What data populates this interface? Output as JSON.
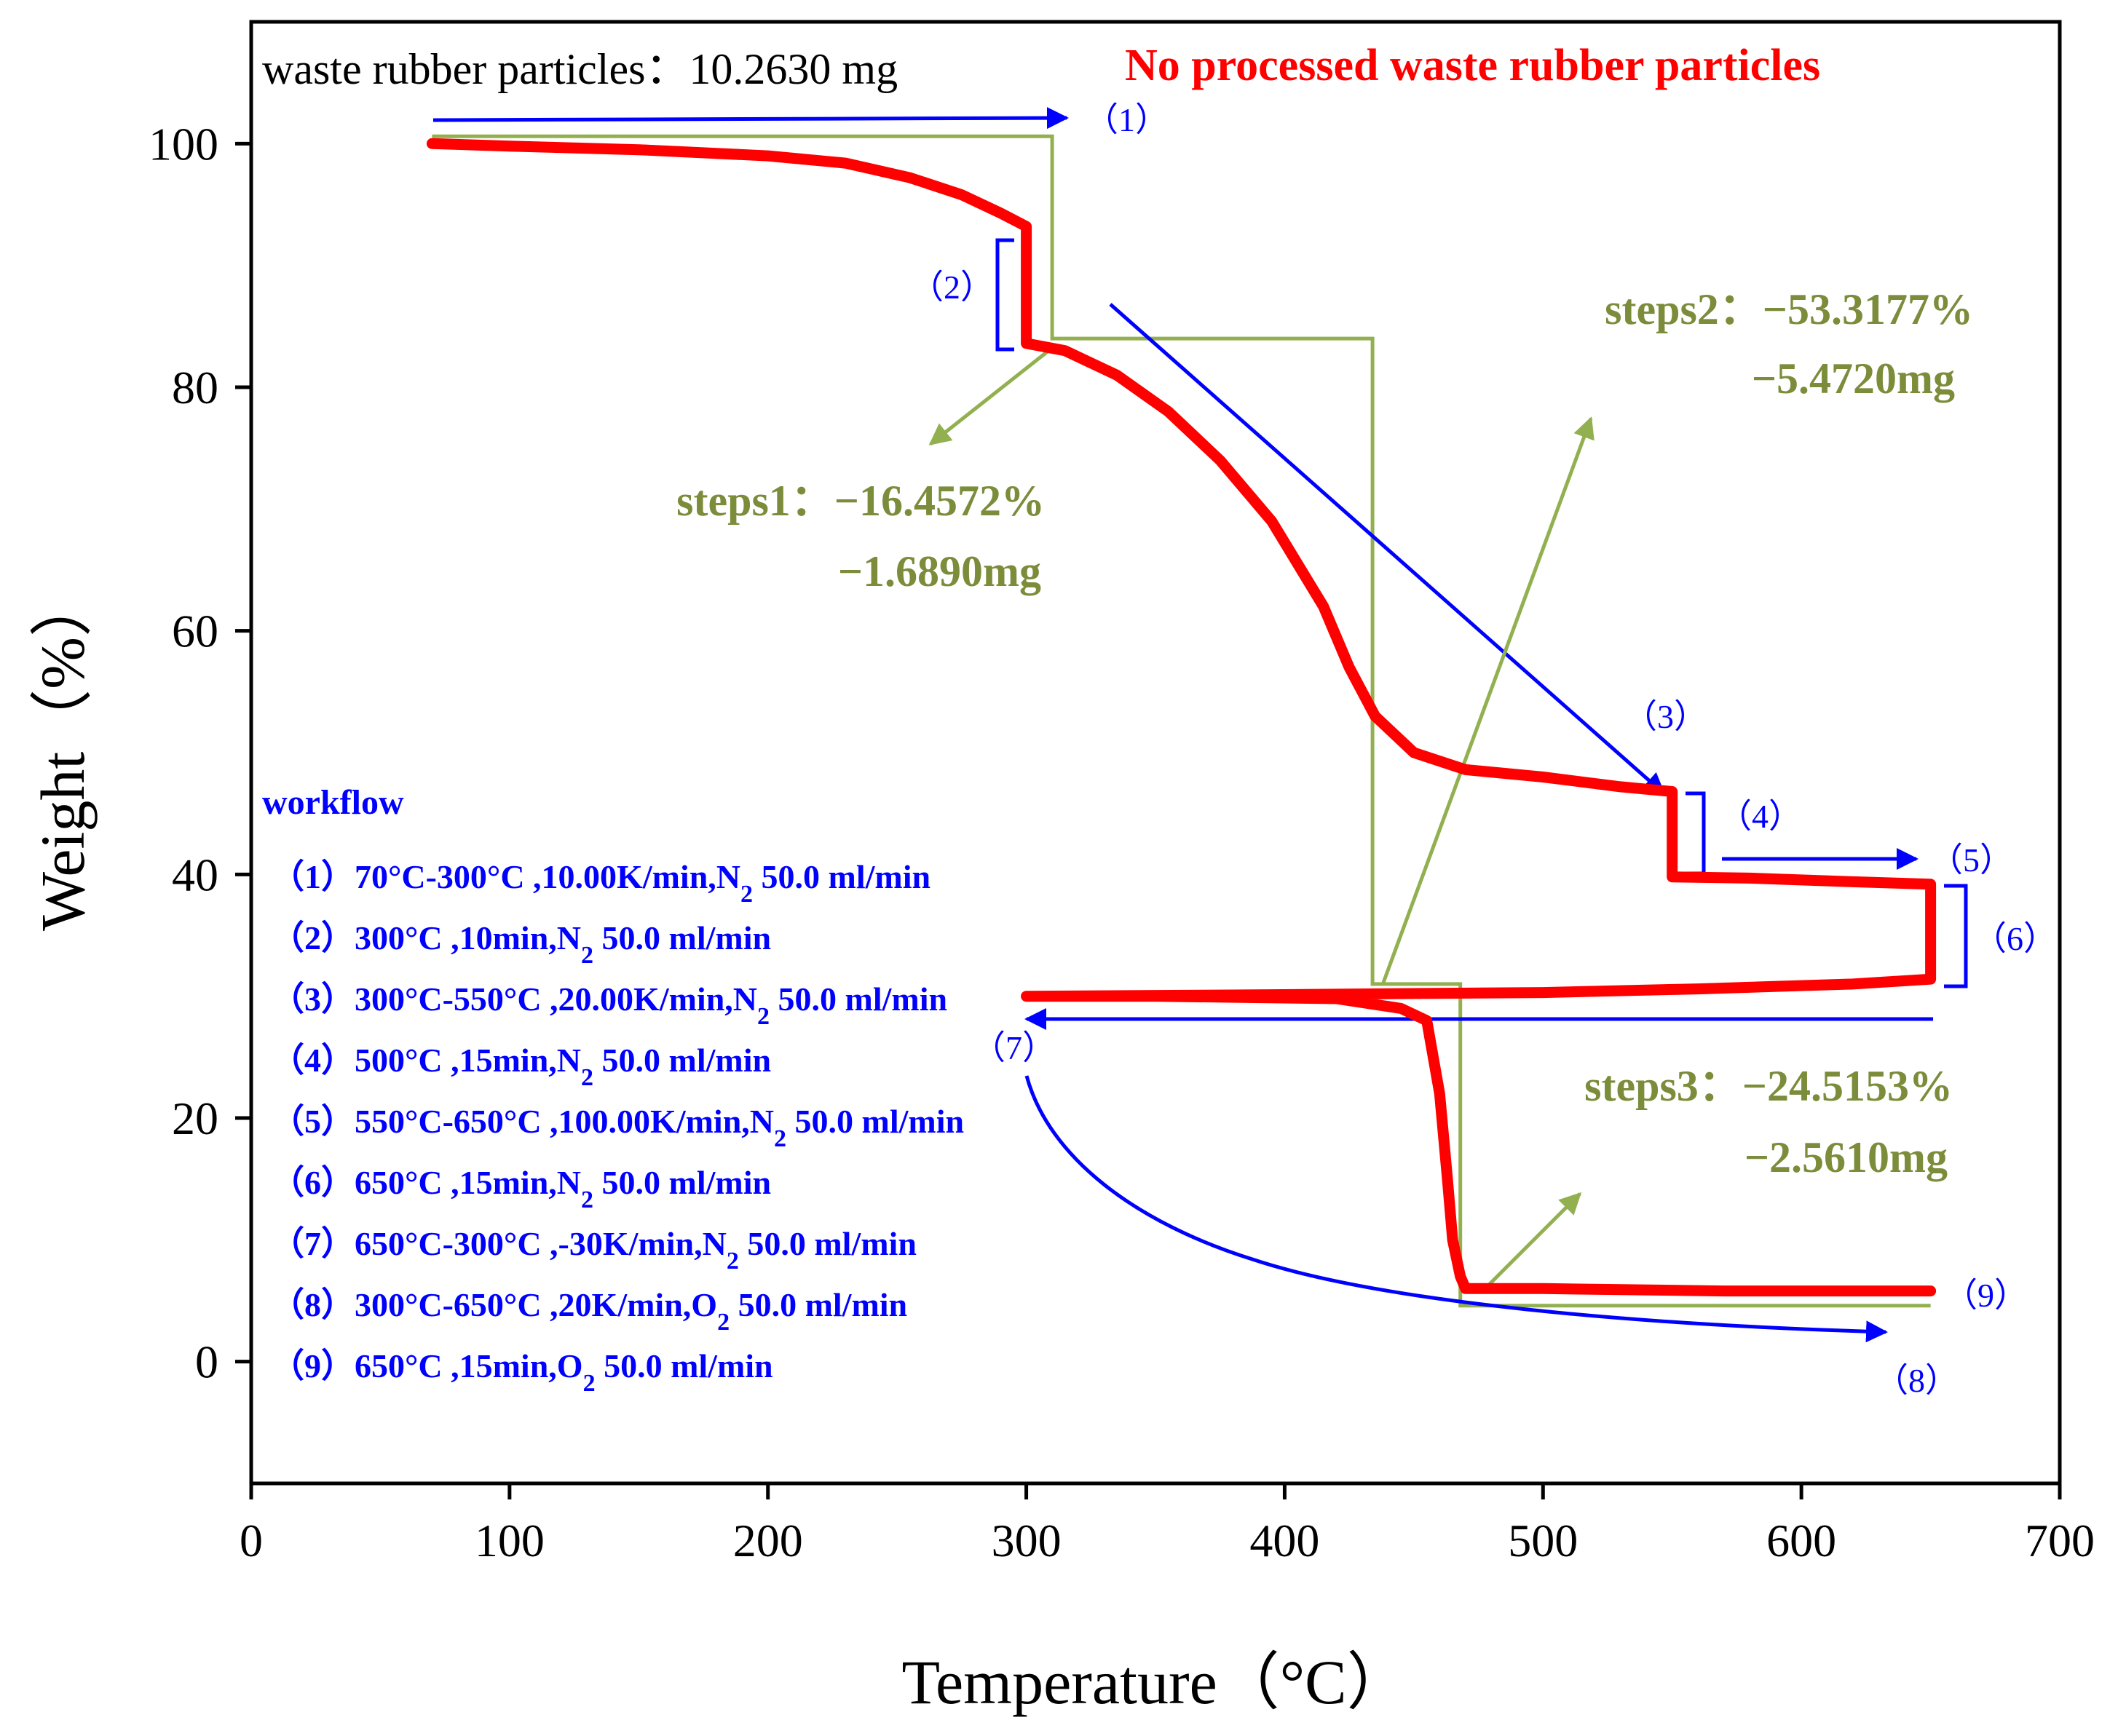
{
  "chart_data": {
    "type": "line",
    "title": "No processed waste rubber particles",
    "sample_info": "waste rubber particles：10.2630 mg",
    "xlabel": "Temperature（°C）",
    "ylabel": "Weight（%）",
    "xlim": [
      0,
      700
    ],
    "ylim": [
      -10,
      110
    ],
    "x_ticks": [
      0,
      100,
      200,
      300,
      400,
      500,
      600,
      700
    ],
    "x_tick_labels": [
      "0",
      "100",
      "200",
      "300",
      "400",
      "500",
      "600",
      "700"
    ],
    "y_ticks": [
      0,
      20,
      40,
      60,
      80,
      100
    ],
    "y_tick_labels": [
      "0",
      "20",
      "40",
      "60",
      "80",
      "100"
    ],
    "colors": {
      "tga_curve": "#ff0000",
      "step_lines": "#92b050",
      "workflow": "#0000ff",
      "step_text": "#7b8c3a",
      "title": "#ff0000"
    },
    "series": [
      {
        "name": "TGA weight curve",
        "color": "#ff0000",
        "points": [
          [
            70,
            100
          ],
          [
            100,
            99.8
          ],
          [
            150,
            99.5
          ],
          [
            200,
            99
          ],
          [
            230,
            98.4
          ],
          [
            255,
            97.2
          ],
          [
            275,
            95.8
          ],
          [
            290,
            94.3
          ],
          [
            300,
            93.2
          ],
          [
            300,
            83.6
          ],
          [
            315,
            83
          ],
          [
            335,
            81
          ],
          [
            355,
            78
          ],
          [
            375,
            74
          ],
          [
            395,
            69
          ],
          [
            415,
            62
          ],
          [
            425,
            57
          ],
          [
            435,
            53
          ],
          [
            450,
            50
          ],
          [
            470,
            48.6
          ],
          [
            500,
            48
          ],
          [
            530,
            47.2
          ],
          [
            550,
            46.8
          ],
          [
            550,
            39.8
          ],
          [
            580,
            39.7
          ],
          [
            620,
            39.4
          ],
          [
            650,
            39.2
          ],
          [
            650,
            31.4
          ],
          [
            620,
            31
          ],
          [
            560,
            30.6
          ],
          [
            500,
            30.3
          ],
          [
            440,
            30.2
          ],
          [
            380,
            30.1
          ],
          [
            300,
            30
          ],
          [
            350,
            30
          ],
          [
            420,
            29.8
          ],
          [
            445,
            29
          ],
          [
            455,
            28
          ],
          [
            460,
            22
          ],
          [
            463,
            15
          ],
          [
            465,
            10
          ],
          [
            468,
            7
          ],
          [
            470,
            6
          ],
          [
            500,
            6
          ],
          [
            570,
            5.8
          ],
          [
            650,
            5.8
          ]
        ]
      },
      {
        "name": "Step markers",
        "color": "#92b050",
        "points": [
          [
            70,
            100.6
          ],
          [
            310,
            100.6
          ],
          [
            310,
            84
          ],
          [
            434,
            84
          ],
          [
            434,
            31
          ],
          [
            468,
            31
          ],
          [
            468,
            4.6
          ],
          [
            650,
            4.6
          ]
        ]
      }
    ],
    "annotations": {
      "steps": [
        {
          "name": "steps1",
          "percent": "steps1：−16.4572%",
          "mass": "−1.6890mg"
        },
        {
          "name": "steps2",
          "percent": "steps2：−53.3177%",
          "mass": "−5.4720mg"
        },
        {
          "name": "steps3",
          "percent": "steps3：−24.5153%",
          "mass": "−2.5610mg"
        }
      ],
      "markers": [
        "（1）",
        "（2）",
        "（3）",
        "（4）",
        "（5）",
        "（6）",
        "（7）",
        "（8）",
        "（9）"
      ],
      "workflow_title": "workflow",
      "workflow": [
        {
          "num": "（1）",
          "pre": "70°C-300°C ,10.00K/min,N",
          "sub": "2",
          "post": " 50.0 ml/min"
        },
        {
          "num": "（2）",
          "pre": "300°C ,10min,N",
          "sub": "2",
          "post": " 50.0 ml/min"
        },
        {
          "num": "（3）",
          "pre": "300°C-550°C ,20.00K/min,N",
          "sub": "2",
          "post": " 50.0 ml/min"
        },
        {
          "num": "（4）",
          "pre": "500°C ,15min,N",
          "sub": "2",
          "post": " 50.0 ml/min"
        },
        {
          "num": "（5）",
          "pre": "550°C-650°C ,100.00K/min,N",
          "sub": "2",
          "post": " 50.0 ml/min"
        },
        {
          "num": "（6）",
          "pre": "650°C ,15min,N",
          "sub": "2",
          "post": " 50.0 ml/min"
        },
        {
          "num": "（7）",
          "pre": "650°C-300°C ,-30K/min,N",
          "sub": "2",
          "post": " 50.0 ml/min"
        },
        {
          "num": "（8）",
          "pre": "300°C-650°C ,20K/min,O",
          "sub": "2",
          "post": " 50.0 ml/min"
        },
        {
          "num": "（9）",
          "pre": "650°C ,15min,O",
          "sub": "2",
          "post": " 50.0 ml/min"
        }
      ]
    }
  }
}
